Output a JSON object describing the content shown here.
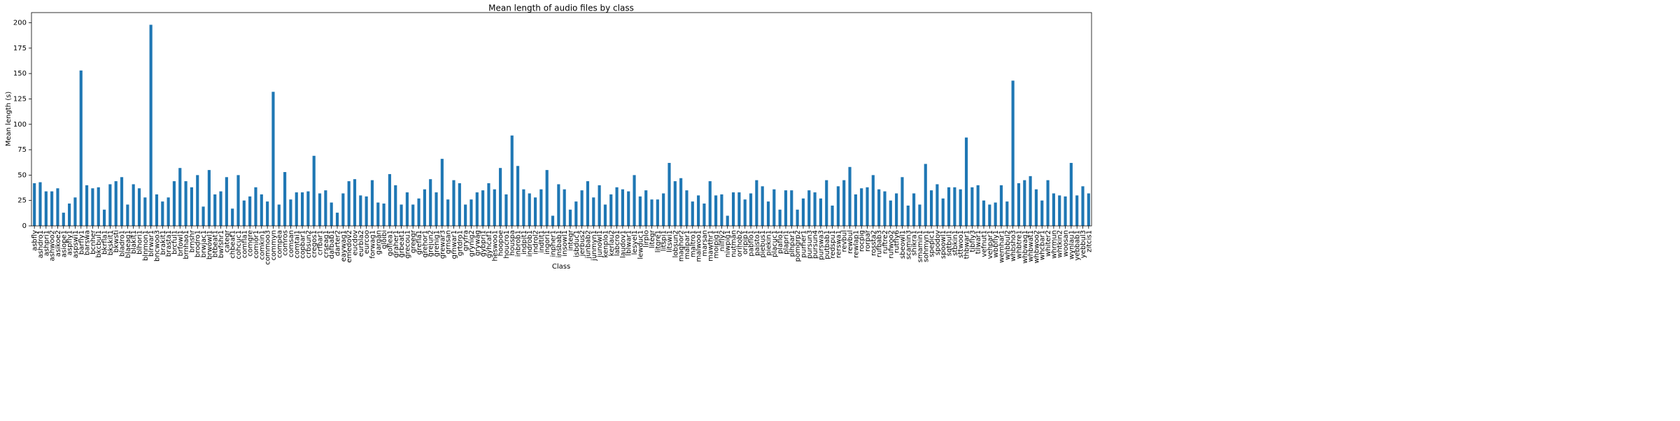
{
  "chart_data": {
    "type": "bar",
    "title": "Mean length of audio files by class",
    "xlabel": "Class",
    "ylabel": "Mean length (s)",
    "color": "#1f77b4",
    "categories": [
      "asbfly",
      "ashdro1",
      "ashpri1",
      "ashwoo2",
      "asikoe2",
      "asiope1",
      "aspfly1",
      "aspswi1",
      "barfly1",
      "barswa",
      "bcnher",
      "bkcbul1",
      "bkrfla1",
      "bkskit1",
      "bkwsti",
      "bladro1",
      "blaeag1",
      "blakit1",
      "blhori1",
      "blnmon1",
      "blrwar1",
      "bncwoo3",
      "brakit1",
      "brasta1",
      "brcful1",
      "brfowl1",
      "brnhao1",
      "brnshr",
      "brodro1",
      "brwjac1",
      "brwowl1",
      "btbeat1",
      "bwfshr1",
      "categr",
      "chbeat1",
      "cohcuc1",
      "comfla1",
      "comgre",
      "comior1",
      "comkin1",
      "commoo3",
      "commyn",
      "compea",
      "comros",
      "comsan",
      "comtai1",
      "copbar1",
      "crbsun2",
      "cregos1",
      "crfbar1",
      "crseag1",
      "dafbab1",
      "darter2",
      "eaywag1",
      "emedov2",
      "eucdov",
      "eurbla2",
      "eurcoo",
      "forwag1",
      "gargan",
      "gloibi",
      "goflea1",
      "graher1",
      "grbeat1",
      "grecou1",
      "greegr",
      "grefla1",
      "grehor1",
      "grejun2",
      "grenig1",
      "grewar3",
      "grnsan",
      "grnwar1",
      "grtdro1",
      "gryfra",
      "grynig2",
      "grywag",
      "gybpri1",
      "gyhcaf1",
      "heswoo1",
      "hoopoe",
      "houcro1",
      "houspa",
      "inbrob1",
      "indpit1",
      "indrob1",
      "indrol2",
      "indtit1",
      "ingori1",
      "inpher1",
      "insbab1",
      "insowl1",
      "integr",
      "isbduc1",
      "jerbus2",
      "junbab2",
      "junmyn1",
      "junowl1",
      "kenplo1",
      "kerlau2",
      "labcro1",
      "laudov1",
      "lblwar1",
      "lesyel1",
      "lewduc1",
      "lirplo",
      "litegr",
      "litgre1",
      "litspi1",
      "litswi1",
      "lobsun2",
      "maghor2",
      "malpar1",
      "maltro1",
      "malwoo1",
      "marsan",
      "mawthr1",
      "moipig1",
      "nilfly2",
      "niwpig1",
      "nutman",
      "orihob2",
      "oripip1",
      "pabflo1",
      "paisto1",
      "piebus1",
      "piekin1",
      "placuc1",
      "plaflo1",
      "plapri1",
      "plhpar1",
      "pomgrp2",
      "purher1",
      "pursun3",
      "pursun4",
      "purswa3",
      "putbab1",
      "redspu1",
      "rerswa1",
      "revbul",
      "rewbul",
      "rewlap1",
      "rocpig",
      "rorpar",
      "rossta2",
      "rufbab3",
      "ruftre2",
      "rufwoo2",
      "rutfly6",
      "sbeowl1",
      "scamin3",
      "shikra1",
      "smamin1",
      "sohmyn1",
      "spepic1",
      "spodov",
      "spoowl1",
      "sqtbul1",
      "stbkin1",
      "sttwoo1",
      "thbwar1",
      "tibfly3",
      "tilwar1",
      "vefnut1",
      "vehpar1",
      "wbbfly1",
      "wemhar1",
      "whbbul2",
      "whbsho3",
      "whbtre1",
      "whbwag1",
      "whbwat1",
      "whbwoo2",
      "whcbar1",
      "whiter2",
      "whrmun",
      "whtkin2",
      "woosan",
      "wynlau1",
      "yebbab1",
      "yebbul3",
      "zitcis1"
    ],
    "values": [
      42,
      43,
      34,
      34,
      37,
      13,
      22,
      28,
      153,
      40,
      37,
      38,
      16,
      41,
      44,
      48,
      21,
      41,
      37,
      28,
      198,
      31,
      24,
      28,
      44,
      57,
      44,
      38,
      50,
      19,
      55,
      31,
      34,
      48,
      17,
      50,
      25,
      29,
      38,
      31,
      24,
      132,
      21,
      53,
      26,
      33,
      33,
      34,
      69,
      32,
      35,
      23,
      13,
      32,
      44,
      46,
      30,
      29,
      45,
      23,
      22,
      51,
      40,
      21,
      33,
      21,
      27,
      36,
      46,
      33,
      66,
      26,
      45,
      42,
      21,
      26,
      33,
      35,
      42,
      36,
      57,
      31,
      89,
      59,
      36,
      32,
      28,
      36,
      55,
      10,
      41,
      36,
      16,
      24,
      35,
      44,
      28,
      40,
      21,
      31,
      38,
      36,
      34,
      50,
      29,
      35,
      26,
      26,
      32,
      62,
      44,
      47,
      35,
      24,
      30,
      22,
      44,
      30,
      31,
      10,
      33,
      33,
      26,
      32,
      45,
      39,
      24,
      36,
      16,
      35,
      35,
      16,
      27,
      35,
      33,
      27,
      45,
      20,
      39,
      45,
      58,
      31,
      37,
      38,
      50,
      36,
      34,
      25,
      32,
      48,
      20,
      32,
      21,
      61,
      35,
      41,
      27,
      38,
      38,
      36,
      87,
      38,
      40,
      25,
      21,
      23,
      40,
      24,
      143,
      42,
      45,
      49,
      36,
      25,
      45,
      32,
      30,
      29,
      62,
      30,
      39,
      32
    ],
    "ylim": [
      0,
      210
    ],
    "yticks": [
      0,
      25,
      50,
      75,
      100,
      125,
      150,
      175,
      200
    ]
  }
}
